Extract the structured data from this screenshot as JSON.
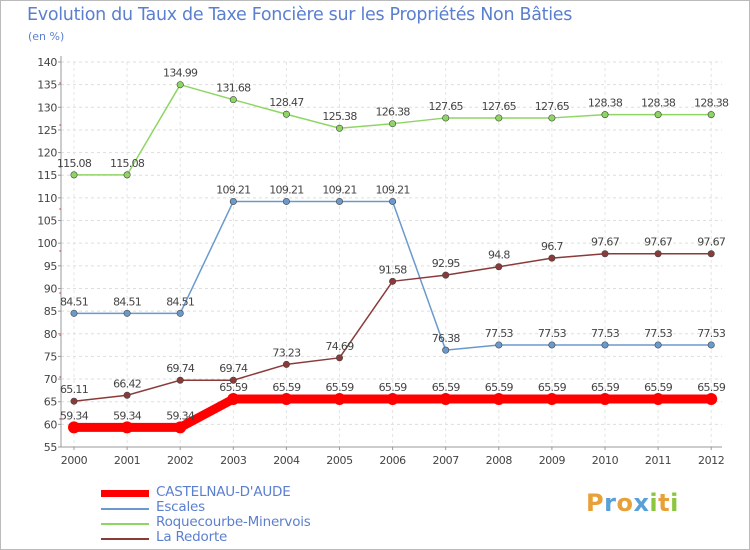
{
  "title": "Evolution du Taux de Taxe Foncière sur les Propriétés Non Bâties",
  "ylabel": "(en %)",
  "logo": {
    "text": "Proxiti",
    "letters": [
      {
        "ch": "P",
        "color": "#e8a038"
      },
      {
        "ch": "r",
        "color": "#5aa0d8"
      },
      {
        "ch": "o",
        "color": "#e8a038"
      },
      {
        "ch": "x",
        "color": "#5aa0d8"
      },
      {
        "ch": "i",
        "color": "#8cc63f"
      },
      {
        "ch": "t",
        "color": "#e8a038"
      },
      {
        "ch": "i",
        "color": "#8cc63f"
      }
    ]
  },
  "chart_data": {
    "type": "line",
    "title": "Evolution du Taux de Taxe Foncière sur les Propriétés Non Bâties",
    "ylabel": "(en %)",
    "x": [
      "2000",
      "2001",
      "2002",
      "2003",
      "2004",
      "2005",
      "2006",
      "2007",
      "2008",
      "2009",
      "2010",
      "2011",
      "2012"
    ],
    "ylim": [
      55,
      140
    ],
    "yticks": [
      55,
      60,
      65,
      70,
      75,
      80,
      85,
      90,
      95,
      100,
      105,
      110,
      115,
      120,
      125,
      130,
      135,
      140
    ],
    "grid": "horizontal dashed",
    "legend_position": "bottom-left",
    "series": [
      {
        "name": "CASTELNAU-D'AUDE",
        "color": "#ff0000",
        "values": [
          59.34,
          59.34,
          59.34,
          65.59,
          65.59,
          65.59,
          65.59,
          65.59,
          65.59,
          65.59,
          65.59,
          65.59,
          65.59
        ],
        "labels": [
          "59.34",
          "59.34",
          "59.34",
          "65.59",
          "65.59",
          "65.59",
          "65.59",
          "65.59",
          "65.59",
          "65.59",
          "65.59",
          "65.59",
          "65.59"
        ]
      },
      {
        "name": "Escales",
        "color": "#6a9acd",
        "values": [
          84.51,
          84.51,
          84.51,
          109.21,
          109.21,
          109.21,
          109.21,
          76.38,
          77.53,
          77.53,
          77.53,
          77.53,
          77.53
        ],
        "labels": [
          "84.51",
          "84.51",
          "84.51",
          "109.21",
          "109.21",
          "109.21",
          "109.21",
          "76.38",
          "77.53",
          "77.53",
          "77.53",
          "77.53",
          "77.53"
        ]
      },
      {
        "name": "Roquecourbe-Minervois",
        "color": "#8ed663",
        "values": [
          115.08,
          115.08,
          134.99,
          131.68,
          128.47,
          125.38,
          126.38,
          127.65,
          127.65,
          127.65,
          128.38,
          128.38,
          128.38
        ],
        "labels": [
          "115.08",
          "115.08",
          "134.99",
          "131.68",
          "128.47",
          "125.38",
          "126.38",
          "127.65",
          "127.65",
          "127.65",
          "128.38",
          "128.38",
          "128.38"
        ]
      },
      {
        "name": "La Redorte",
        "color": "#8b3a3a",
        "values": [
          65.11,
          66.42,
          69.74,
          69.74,
          73.23,
          74.69,
          91.58,
          92.95,
          94.8,
          96.7,
          97.67,
          97.67,
          97.67
        ],
        "labels": [
          "65.11",
          "66.42",
          "69.74",
          "69.74",
          "73.23",
          "74.69",
          "91.58",
          "92.95",
          "94.8",
          "96.7",
          "97.67",
          "97.67",
          "97.67"
        ]
      }
    ]
  }
}
